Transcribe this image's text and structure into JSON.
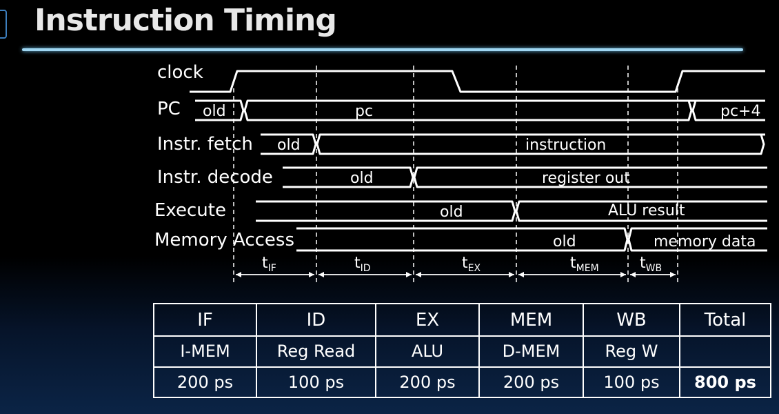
{
  "slide": {
    "title": "Instruction Timing"
  },
  "timing": {
    "signals": [
      {
        "id": "clock",
        "label": "clock"
      },
      {
        "id": "pc",
        "label": "PC",
        "old": "old",
        "new": "pc",
        "next": "pc+4"
      },
      {
        "id": "fetch",
        "label": "Instr. fetch",
        "old": "old",
        "new": "instruction"
      },
      {
        "id": "decode",
        "label": "Instr. decode",
        "old": "old",
        "new": "register out"
      },
      {
        "id": "execute",
        "label": "Execute",
        "old": "old",
        "new": "ALU result"
      },
      {
        "id": "mem",
        "label": "Memory Access",
        "old": "old",
        "new": "memory data"
      }
    ],
    "intervals": [
      {
        "id": "if",
        "t": "t",
        "sub": "IF"
      },
      {
        "id": "id",
        "t": "t",
        "sub": "ID"
      },
      {
        "id": "ex",
        "t": "t",
        "sub": "EX"
      },
      {
        "id": "mem",
        "t": "t",
        "sub": "MEM"
      },
      {
        "id": "wb",
        "t": "t",
        "sub": "WB"
      }
    ]
  },
  "stage_table": {
    "headers": [
      "IF",
      "ID",
      "EX",
      "MEM",
      "WB",
      "Total"
    ],
    "units": [
      "I-MEM",
      "Reg Read",
      "ALU",
      "D-MEM",
      "Reg W",
      ""
    ],
    "times": [
      "200 ps",
      "100 ps",
      "200 ps",
      "200 ps",
      "100 ps",
      "800 ps"
    ]
  }
}
